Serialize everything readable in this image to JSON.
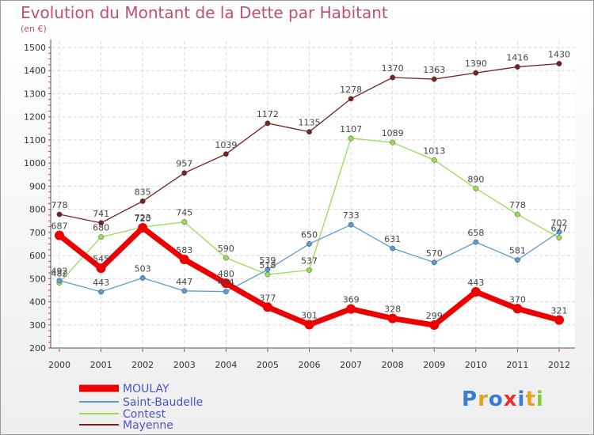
{
  "chart_data": {
    "type": "line",
    "title": "Evolution du Montant de la Dette par Habitant",
    "subtitle": "(en €)",
    "x": [
      "2000",
      "2001",
      "2002",
      "2003",
      "2004",
      "2005",
      "2006",
      "2007",
      "2008",
      "2009",
      "2010",
      "2011",
      "2012"
    ],
    "ylim": [
      200,
      1500
    ],
    "yticks": [
      200,
      300,
      400,
      500,
      600,
      700,
      800,
      900,
      1000,
      1100,
      1200,
      1300,
      1400,
      1500
    ],
    "grid": true,
    "legend_position": "bottom-left",
    "series": [
      {
        "name": "MOULAY",
        "color": "#ee0000",
        "values": [
          687,
          545,
          720,
          583,
          480,
          377,
          301,
          369,
          328,
          299,
          443,
          370,
          321
        ]
      },
      {
        "name": "Saint-Baudelle",
        "color": "#5b9bd5",
        "values": [
          492,
          443,
          503,
          447,
          444,
          539,
          650,
          733,
          631,
          570,
          658,
          581,
          702
        ]
      },
      {
        "name": "Contest",
        "color": "#99dd55",
        "values": [
          482,
          680,
          723,
          745,
          590,
          518,
          537,
          1107,
          1089,
          1013,
          890,
          778,
          677
        ]
      },
      {
        "name": "Mayenne",
        "color": "#772222",
        "values": [
          778,
          741,
          835,
          957,
          1039,
          1172,
          1135,
          1278,
          1370,
          1363,
          1390,
          1416,
          1430
        ]
      }
    ]
  },
  "logo": {
    "letters": [
      "P",
      "r",
      "o",
      "x",
      "i",
      "t",
      "i"
    ],
    "colors": [
      "#3a7bd5",
      "#e8a020",
      "#3a7bd5",
      "#e83030",
      "#3a7bd5",
      "#e8a020",
      "#88cc33"
    ]
  }
}
